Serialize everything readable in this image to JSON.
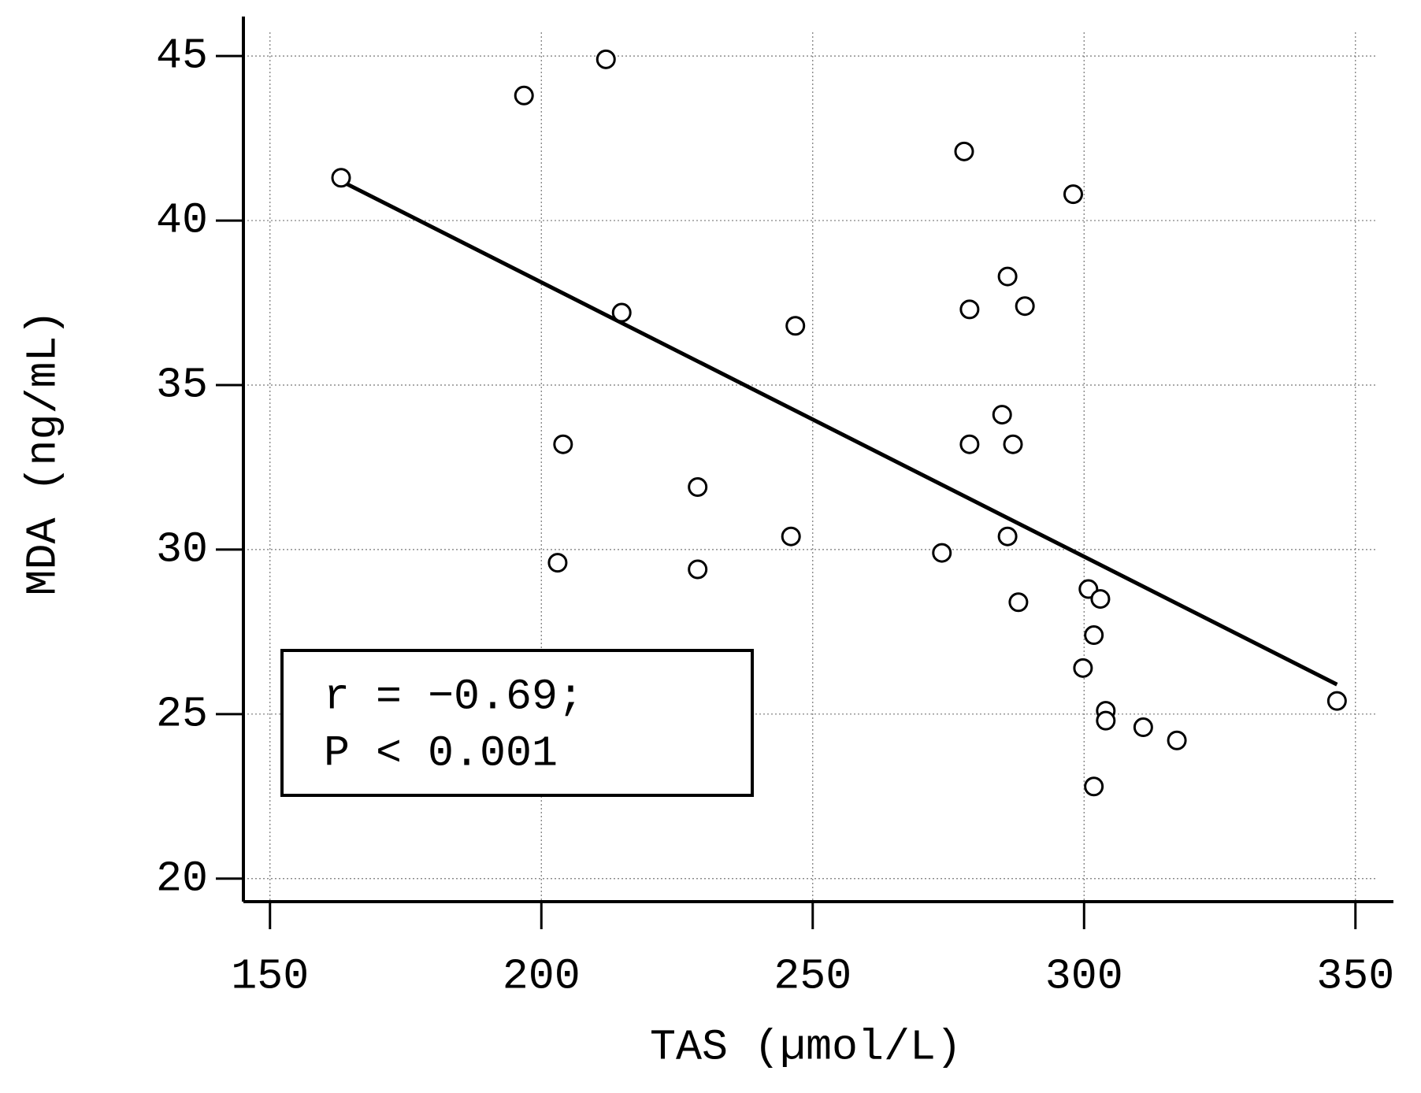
{
  "chart_data": {
    "type": "scatter",
    "x_label": "TAS (µmol/L)",
    "y_label": "MDA (ng/mL)",
    "x": [
      163.1,
      196.8,
      211.9,
      214.8,
      204.0,
      203.0,
      228.8,
      228.8,
      246.8,
      246.0,
      277.9,
      278.9,
      273.8,
      278.9,
      285.9,
      289.1,
      284.9,
      286.9,
      285.9,
      287.9,
      298.0,
      300.8,
      303.0,
      301.8,
      299.8,
      304.0,
      304.0,
      310.9,
      317.1,
      301.8,
      346.6
    ],
    "values": [
      41.3,
      43.8,
      44.9,
      37.2,
      33.2,
      29.6,
      31.9,
      29.4,
      36.8,
      30.4,
      42.1,
      37.3,
      29.9,
      33.2,
      38.3,
      37.4,
      34.1,
      33.2,
      30.4,
      28.4,
      40.8,
      28.8,
      28.5,
      27.4,
      26.4,
      25.1,
      24.8,
      24.6,
      24.2,
      22.8,
      25.4
    ],
    "color": "#000000",
    "trendline": {
      "x": [
        163.1,
        346.6
      ],
      "y": [
        41.2,
        25.9
      ],
      "color": "#000000"
    },
    "annotations": [
      "r = −0.69;",
      "P < 0.001"
    ],
    "xlim": [
      145.1,
      357
    ],
    "ylim": [
      19.3,
      46.2
    ],
    "xticks": [
      150,
      200,
      250,
      300,
      350
    ],
    "yticks": [
      20,
      25,
      30,
      35,
      40,
      45
    ],
    "grid": true
  }
}
